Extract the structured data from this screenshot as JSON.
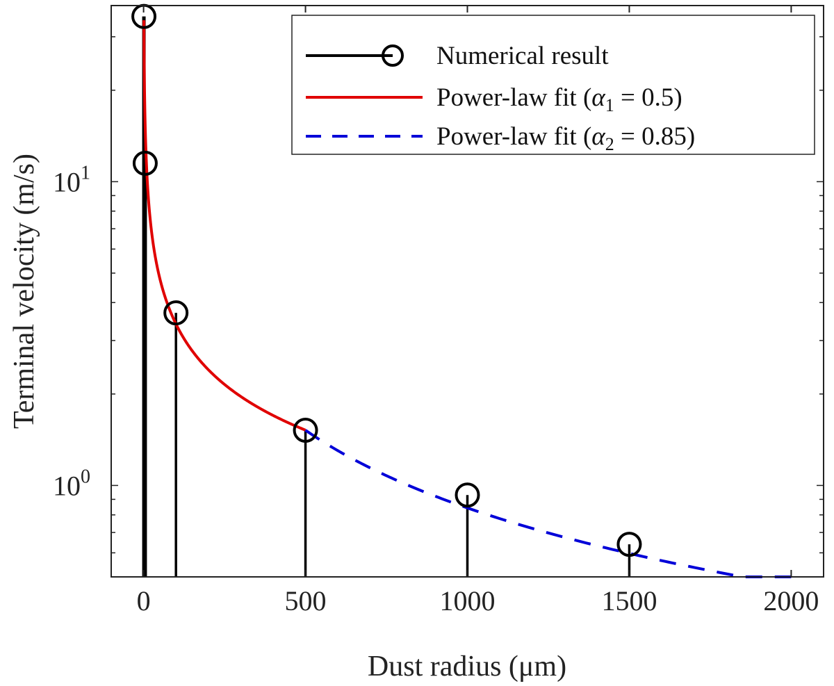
{
  "chart_data": {
    "type": "line",
    "xlabel": "Dust radius (μm)",
    "ylabel": "Terminal velocity (m/s)",
    "x_scale": "linear",
    "y_scale": "log",
    "xlim": [
      -100,
      2100
    ],
    "ylim": [
      0.5,
      38
    ],
    "x_ticks": [
      0,
      500,
      1000,
      1500,
      2000
    ],
    "x_tick_labels": [
      "0",
      "500",
      "1000",
      "1500",
      "2000"
    ],
    "y_ticks": [
      1,
      10
    ],
    "y_tick_labels": [
      {
        "base": "10",
        "exp": "0"
      },
      {
        "base": "10",
        "exp": "1"
      }
    ],
    "legend_position": "top-right",
    "series": [
      {
        "name": "Numerical result",
        "style": "stem",
        "color": "#000000",
        "marker": "circle",
        "x": [
          1,
          5,
          100,
          500,
          1000,
          1500
        ],
        "y": [
          35,
          11.5,
          3.7,
          1.52,
          0.93,
          0.64
        ]
      },
      {
        "name": "Power-law fit",
        "alpha_symbol": "α",
        "alpha_sub": "1",
        "alpha_value": "0.5",
        "style": "solid",
        "color": "#e00000",
        "model": "y = 34 * x^-0.5",
        "x_range": [
          1,
          500
        ]
      },
      {
        "name": "Power-law fit",
        "alpha_symbol": "α",
        "alpha_sub": "2",
        "alpha_value": "0.85",
        "style": "dashed",
        "color": "#0000d8",
        "model": "y = 1.52 * (x/500)^-0.85",
        "x_range": [
          500,
          2000
        ]
      }
    ]
  }
}
